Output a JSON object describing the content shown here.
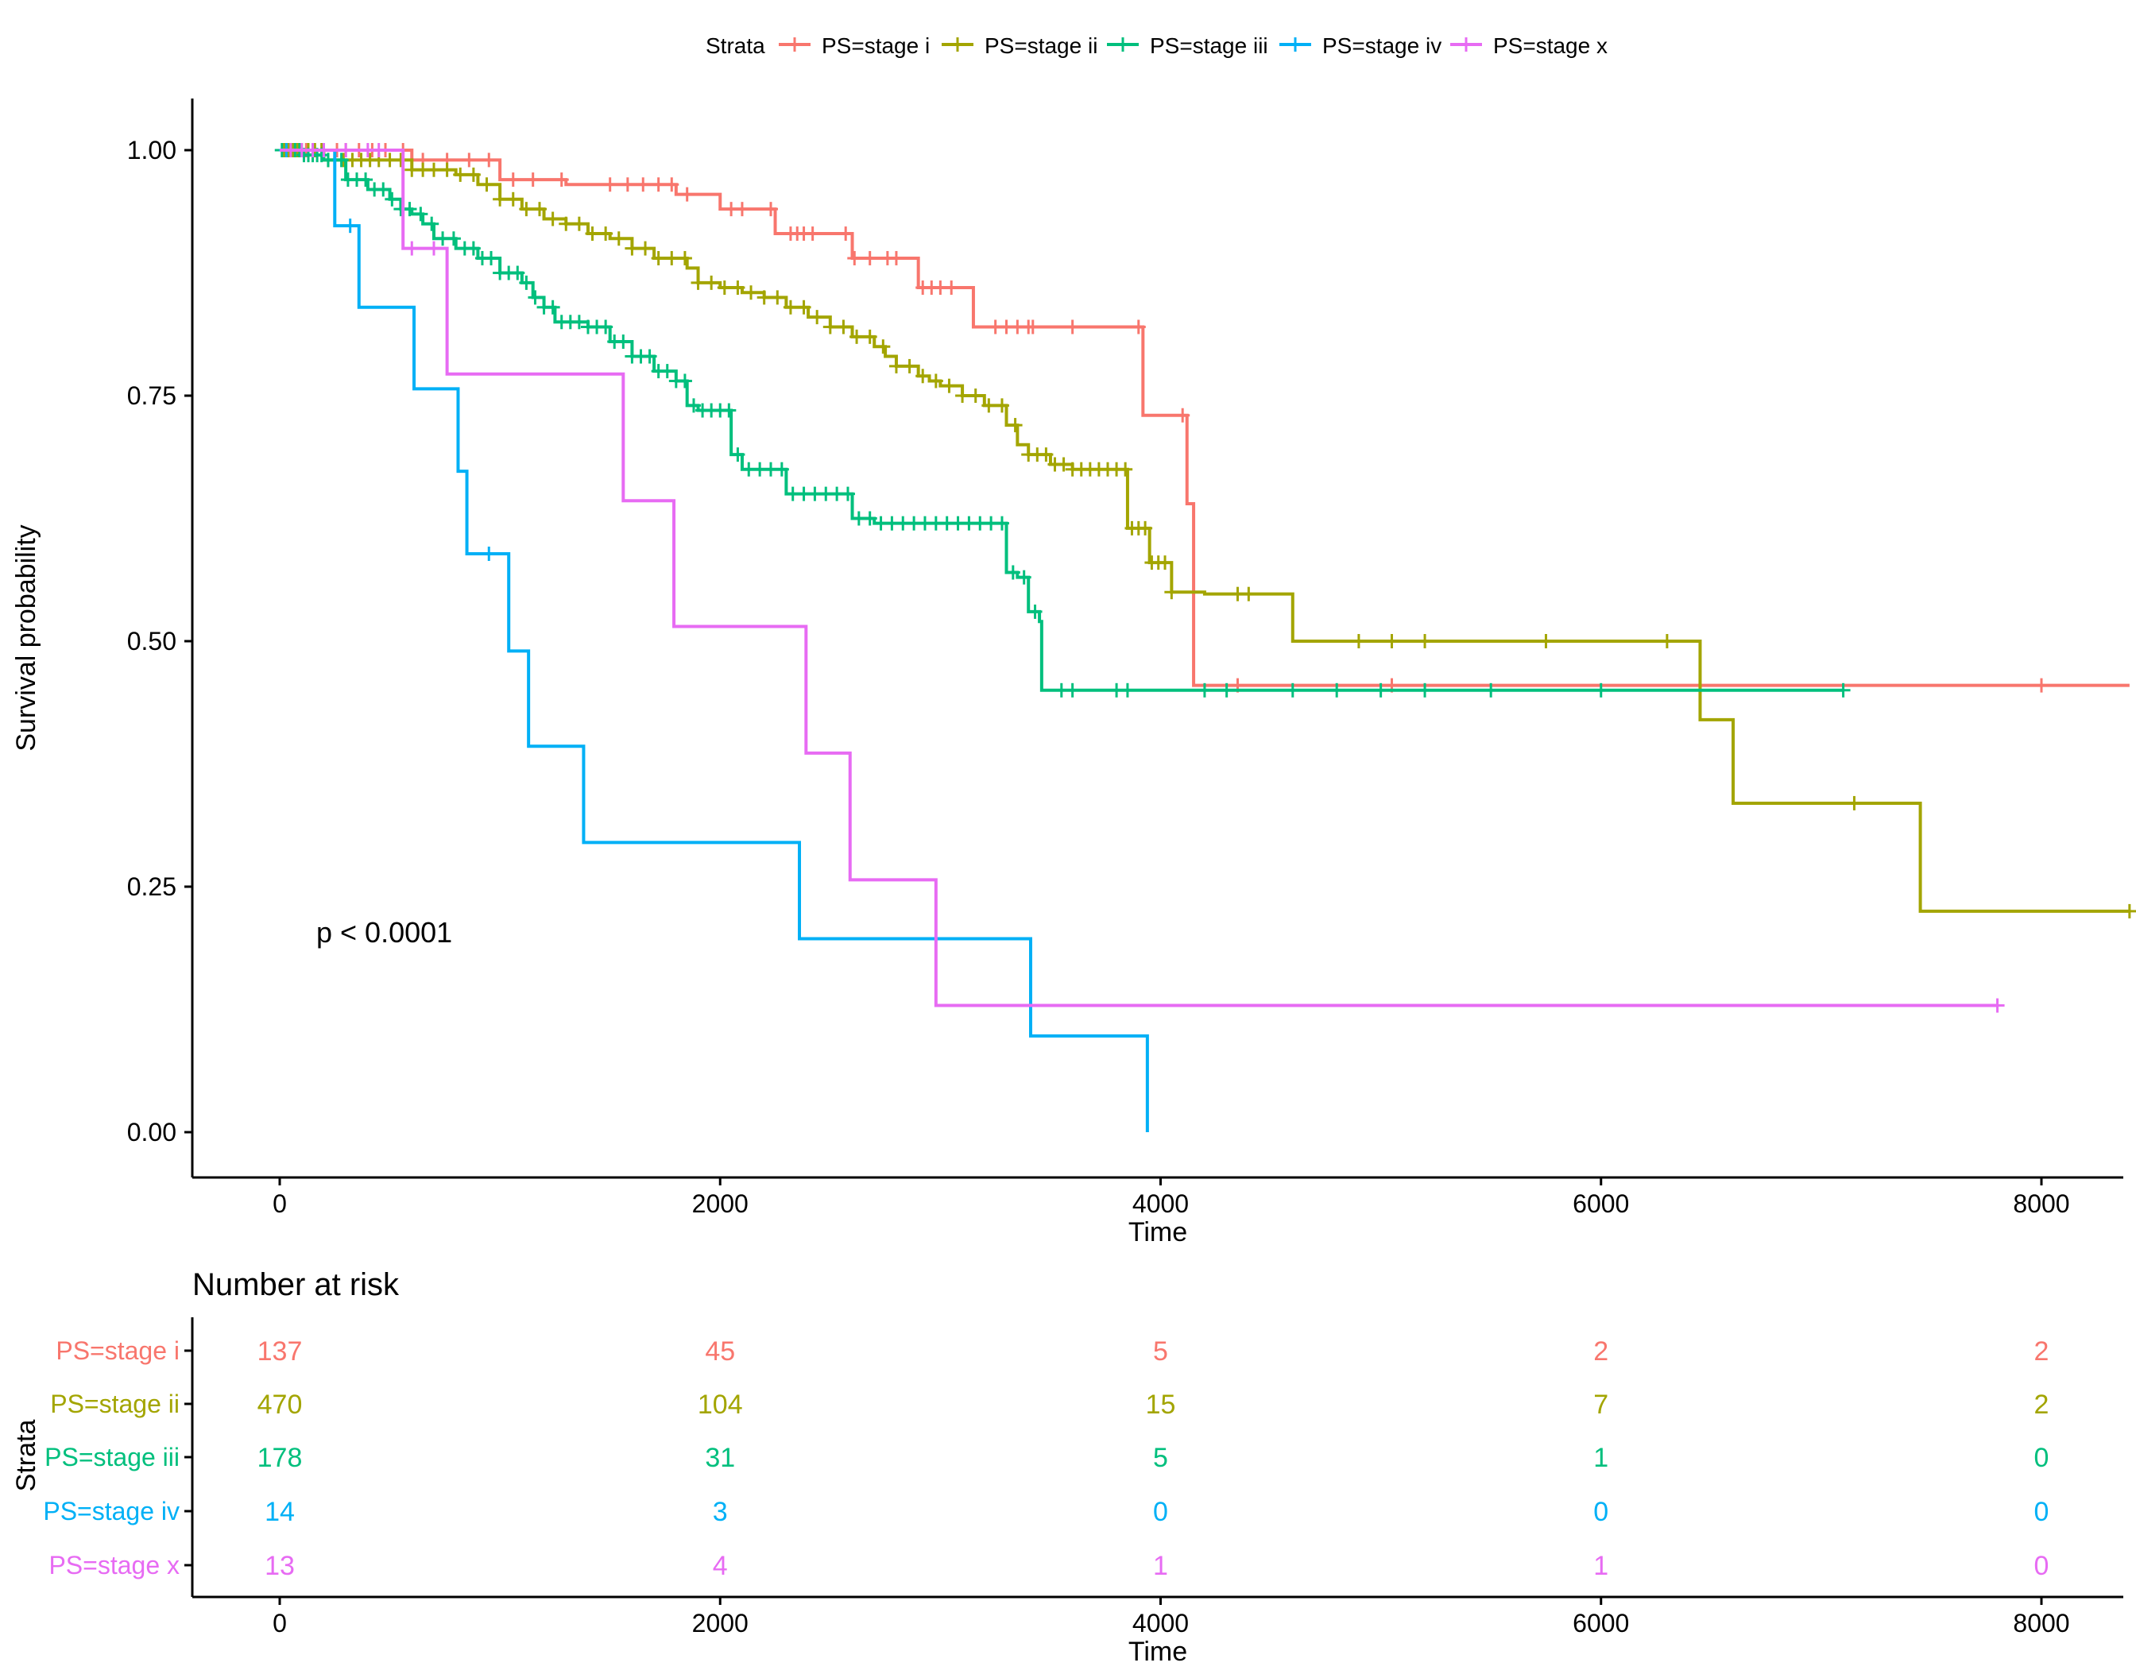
{
  "colors": {
    "stage_i": "#F8766D",
    "stage_ii": "#A3A500",
    "stage_iii": "#00BF7D",
    "stage_iv": "#00B0F6",
    "stage_x": "#E76BF3",
    "axis": "#000000",
    "background": "#FFFFFF"
  },
  "chart_data": [
    {
      "type": "line",
      "subtype": "kaplan-meier step curve",
      "xlabel": "Time",
      "ylabel": "Survival probability",
      "xlim": [
        -500,
        8400
      ],
      "ylim": [
        -0.045,
        1.05
      ],
      "xticks": [
        0,
        2000,
        4000,
        6000,
        8000
      ],
      "xtick_labels": [
        "0",
        "2000",
        "4000",
        "6000",
        "8000"
      ],
      "yticks": [
        0,
        0.25,
        0.5,
        0.75,
        1.0
      ],
      "ytick_labels": [
        "0.00",
        "0.25",
        "0.50",
        "0.75",
        "1.00"
      ],
      "grid": false,
      "legend": {
        "position": "top",
        "title": "Strata",
        "entries": [
          "PS=stage i",
          "PS=stage ii",
          "PS=stage iii",
          "PS=stage iv",
          "PS=stage x"
        ]
      },
      "annotation": "p < 0.0001",
      "series": [
        {
          "name": "PS=stage i",
          "color_key": "stage_i",
          "steps": [
            [
              0,
              1.0
            ],
            [
              600,
              0.99
            ],
            [
              1000,
              0.97
            ],
            [
              1300,
              0.965
            ],
            [
              1800,
              0.955
            ],
            [
              2000,
              0.94
            ],
            [
              2250,
              0.915
            ],
            [
              2300,
              0.915
            ],
            [
              2600,
              0.89
            ],
            [
              2900,
              0.86
            ],
            [
              3000,
              0.86
            ],
            [
              3150,
              0.82
            ],
            [
              3700,
              0.82
            ],
            [
              3920,
              0.73
            ],
            [
              4120,
              0.64
            ],
            [
              4150,
              0.455
            ],
            [
              8400,
              0.455
            ]
          ],
          "censor_times": [
            30,
            60,
            90,
            120,
            150,
            200,
            260,
            300,
            360,
            420,
            480,
            560,
            650,
            760,
            860,
            950,
            1060,
            1150,
            1280,
            1500,
            1580,
            1650,
            1720,
            1780,
            1850,
            2050,
            2100,
            2230,
            2320,
            2350,
            2380,
            2420,
            2570,
            2610,
            2680,
            2760,
            2800,
            2920,
            2960,
            3000,
            3050,
            3250,
            3300,
            3350,
            3400,
            3420,
            3600,
            3900,
            4100,
            4350,
            5050,
            8000
          ]
        },
        {
          "name": "PS=stage ii",
          "color_key": "stage_ii",
          "steps": [
            [
              0,
              1.0
            ],
            [
              200,
              0.99
            ],
            [
              600,
              0.98
            ],
            [
              800,
              0.975
            ],
            [
              900,
              0.965
            ],
            [
              1000,
              0.95
            ],
            [
              1100,
              0.94
            ],
            [
              1200,
              0.93
            ],
            [
              1300,
              0.925
            ],
            [
              1400,
              0.915
            ],
            [
              1500,
              0.91
            ],
            [
              1600,
              0.9
            ],
            [
              1700,
              0.89
            ],
            [
              1850,
              0.88
            ],
            [
              1900,
              0.865
            ],
            [
              2000,
              0.86
            ],
            [
              2100,
              0.855
            ],
            [
              2200,
              0.85
            ],
            [
              2300,
              0.84
            ],
            [
              2400,
              0.83
            ],
            [
              2500,
              0.82
            ],
            [
              2600,
              0.81
            ],
            [
              2700,
              0.8
            ],
            [
              2750,
              0.79
            ],
            [
              2800,
              0.78
            ],
            [
              2900,
              0.77
            ],
            [
              2950,
              0.765
            ],
            [
              3000,
              0.76
            ],
            [
              3100,
              0.75
            ],
            [
              3200,
              0.74
            ],
            [
              3300,
              0.72
            ],
            [
              3350,
              0.7
            ],
            [
              3400,
              0.69
            ],
            [
              3500,
              0.68
            ],
            [
              3600,
              0.675
            ],
            [
              3800,
              0.675
            ],
            [
              3850,
              0.615
            ],
            [
              3950,
              0.58
            ],
            [
              4050,
              0.55
            ],
            [
              4200,
              0.548
            ],
            [
              4500,
              0.548
            ],
            [
              4600,
              0.5
            ],
            [
              6400,
              0.5
            ],
            [
              6450,
              0.42
            ],
            [
              6600,
              0.335
            ],
            [
              7400,
              0.335
            ],
            [
              7450,
              0.225
            ],
            [
              8400,
              0.225
            ]
          ],
          "censor_times": [
            20,
            40,
            60,
            80,
            100,
            130,
            160,
            190,
            220,
            250,
            290,
            330,
            370,
            410,
            450,
            500,
            550,
            600,
            650,
            700,
            760,
            820,
            880,
            940,
            1000,
            1060,
            1120,
            1180,
            1240,
            1300,
            1360,
            1420,
            1480,
            1540,
            1600,
            1660,
            1720,
            1780,
            1840,
            1900,
            1960,
            2020,
            2080,
            2140,
            2200,
            2260,
            2320,
            2380,
            2440,
            2500,
            2560,
            2620,
            2680,
            2740,
            2800,
            2860,
            2920,
            2980,
            3040,
            3100,
            3160,
            3220,
            3280,
            3340,
            3400,
            3440,
            3480,
            3520,
            3560,
            3600,
            3640,
            3680,
            3720,
            3760,
            3800,
            3840,
            3870,
            3900,
            3930,
            3960,
            3990,
            4020,
            4050,
            4350,
            4400,
            4900,
            5050,
            5200,
            5750,
            6300,
            7150,
            8400
          ]
        },
        {
          "name": "PS=stage iii",
          "color_key": "stage_iii",
          "steps": [
            [
              0,
              1.0
            ],
            [
              100,
              0.995
            ],
            [
              200,
              0.99
            ],
            [
              300,
              0.97
            ],
            [
              400,
              0.96
            ],
            [
              500,
              0.95
            ],
            [
              550,
              0.94
            ],
            [
              600,
              0.935
            ],
            [
              650,
              0.925
            ],
            [
              700,
              0.91
            ],
            [
              800,
              0.9
            ],
            [
              900,
              0.89
            ],
            [
              1000,
              0.875
            ],
            [
              1100,
              0.865
            ],
            [
              1150,
              0.85
            ],
            [
              1200,
              0.84
            ],
            [
              1250,
              0.825
            ],
            [
              1300,
              0.825
            ],
            [
              1400,
              0.82
            ],
            [
              1500,
              0.805
            ],
            [
              1600,
              0.79
            ],
            [
              1700,
              0.775
            ],
            [
              1800,
              0.765
            ],
            [
              1850,
              0.74
            ],
            [
              1900,
              0.735
            ],
            [
              2000,
              0.735
            ],
            [
              2050,
              0.69
            ],
            [
              2100,
              0.675
            ],
            [
              2200,
              0.675
            ],
            [
              2300,
              0.65
            ],
            [
              2500,
              0.65
            ],
            [
              2600,
              0.625
            ],
            [
              2700,
              0.62
            ],
            [
              2900,
              0.62
            ],
            [
              3050,
              0.62
            ],
            [
              3200,
              0.62
            ],
            [
              3300,
              0.57
            ],
            [
              3350,
              0.565
            ],
            [
              3400,
              0.53
            ],
            [
              3450,
              0.52
            ],
            [
              3460,
              0.45
            ],
            [
              7100,
              0.45
            ]
          ],
          "censor_times": [
            10,
            30,
            50,
            70,
            90,
            110,
            130,
            150,
            170,
            190,
            220,
            250,
            280,
            310,
            350,
            390,
            430,
            470,
            510,
            550,
            590,
            640,
            690,
            740,
            790,
            840,
            880,
            920,
            960,
            1000,
            1040,
            1080,
            1120,
            1160,
            1200,
            1240,
            1280,
            1320,
            1360,
            1400,
            1440,
            1480,
            1520,
            1560,
            1600,
            1640,
            1680,
            1720,
            1760,
            1800,
            1840,
            1880,
            1920,
            1960,
            2000,
            2040,
            2080,
            2130,
            2180,
            2230,
            2280,
            2330,
            2380,
            2430,
            2480,
            2530,
            2580,
            2630,
            2680,
            2730,
            2780,
            2830,
            2880,
            2930,
            2980,
            3030,
            3080,
            3130,
            3180,
            3230,
            3280,
            3330,
            3380,
            3430,
            3550,
            3600,
            3800,
            3850,
            4200,
            4300,
            4600,
            4800,
            5000,
            5200,
            5500,
            6000,
            7100
          ]
        },
        {
          "name": "PS=stage iv",
          "color_key": "stage_iv",
          "steps": [
            [
              0,
              1.0
            ],
            [
              250,
              0.923
            ],
            [
              350,
              0.923
            ],
            [
              360,
              0.84
            ],
            [
              600,
              0.84
            ],
            [
              610,
              0.757
            ],
            [
              800,
              0.757
            ],
            [
              810,
              0.673
            ],
            [
              840,
              0.673
            ],
            [
              850,
              0.589
            ],
            [
              1030,
              0.589
            ],
            [
              1040,
              0.49
            ],
            [
              1120,
              0.49
            ],
            [
              1130,
              0.393
            ],
            [
              1370,
              0.393
            ],
            [
              1380,
              0.295
            ],
            [
              2350,
              0.295
            ],
            [
              2360,
              0.197
            ],
            [
              3400,
              0.197
            ],
            [
              3410,
              0.098
            ],
            [
              3940,
              0.098
            ],
            [
              3940,
              0.0
            ]
          ],
          "censor_times": [
            30,
            150,
            200,
            320,
            950
          ]
        },
        {
          "name": "PS=stage x",
          "color_key": "stage_x",
          "steps": [
            [
              0,
              1.0
            ],
            [
              550,
              1.0
            ],
            [
              560,
              0.9
            ],
            [
              750,
              0.9
            ],
            [
              760,
              0.772
            ],
            [
              1550,
              0.772
            ],
            [
              1560,
              0.643
            ],
            [
              1780,
              0.643
            ],
            [
              1790,
              0.515
            ],
            [
              2380,
              0.515
            ],
            [
              2390,
              0.386
            ],
            [
              2580,
              0.386
            ],
            [
              2590,
              0.257
            ],
            [
              2970,
              0.257
            ],
            [
              2980,
              0.129
            ],
            [
              7800,
              0.129
            ]
          ],
          "censor_times": [
            50,
            100,
            150,
            200,
            300,
            400,
            450,
            600,
            700,
            7800
          ]
        }
      ]
    },
    {
      "type": "table",
      "title": "Number at risk",
      "xlabel": "Time",
      "ylabel": "Strata",
      "xticks": [
        0,
        2000,
        4000,
        6000,
        8000
      ],
      "xtick_labels": [
        "0",
        "2000",
        "4000",
        "6000",
        "8000"
      ],
      "rows": [
        {
          "name": "PS=stage i",
          "color_key": "stage_i",
          "values": [
            "137",
            "45",
            "5",
            "2",
            "2"
          ]
        },
        {
          "name": "PS=stage ii",
          "color_key": "stage_ii",
          "values": [
            "470",
            "104",
            "15",
            "7",
            "2"
          ]
        },
        {
          "name": "PS=stage iii",
          "color_key": "stage_iii",
          "values": [
            "178",
            "31",
            "5",
            "1",
            "0"
          ]
        },
        {
          "name": "PS=stage iv",
          "color_key": "stage_iv",
          "values": [
            "14",
            "3",
            "0",
            "0",
            "0"
          ]
        },
        {
          "name": "PS=stage x",
          "color_key": "stage_x",
          "values": [
            "13",
            "4",
            "1",
            "1",
            "0"
          ]
        }
      ]
    }
  ]
}
